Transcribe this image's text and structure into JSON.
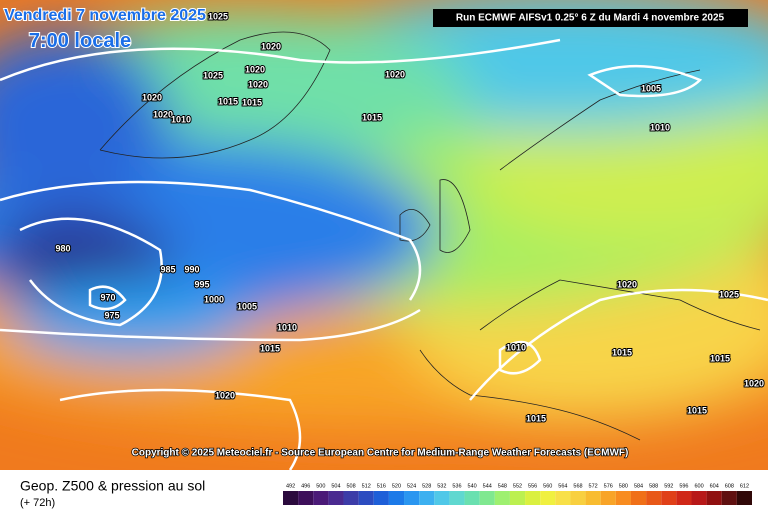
{
  "header": {
    "date": "Vendredi 7 novembre 2025",
    "time": "7:00 locale",
    "run": "Run ECMWF AIFSv1 0.25° 6 Z du Mardi 4 novembre 2025"
  },
  "isobar_labels": [
    "1025",
    "1020",
    "1025",
    "1020",
    "1020",
    "1020",
    "1015",
    "1015",
    "1020",
    "1010",
    "1020",
    "1015",
    "1005",
    "1010",
    "980",
    "985",
    "990",
    "995",
    "1000",
    "970",
    "975",
    "1005",
    "1010",
    "1015",
    "1020",
    "1020",
    "1025",
    "1010",
    "1015",
    "1015",
    "1020",
    "1015",
    "1015"
  ],
  "copyright": "Copyright © 2025 Meteociel.fr - Source European Centre for Medium-Range Weather Forecasts (ECMWF)",
  "legend": {
    "title": "Geop. Z500 & pression au sol",
    "lead_time": "(+ 72h)",
    "ticks": [
      492,
      496,
      500,
      504,
      508,
      512,
      516,
      520,
      524,
      528,
      532,
      536,
      540,
      544,
      548,
      552,
      556,
      560,
      564,
      568,
      572,
      576,
      580,
      584,
      588,
      592,
      596,
      600,
      604,
      608,
      612
    ],
    "colors": [
      "#2b0a3d",
      "#3d0f5a",
      "#4b1a78",
      "#4a2a90",
      "#3c3ca8",
      "#2c4cc0",
      "#1e5fd8",
      "#1c7ae8",
      "#2a96f0",
      "#3cb0f0",
      "#50c8e8",
      "#60d8d0",
      "#6ae0b0",
      "#80e890",
      "#9ef070",
      "#bcf050",
      "#daf040",
      "#f0f040",
      "#f8e048",
      "#f8d040",
      "#f8bc30",
      "#f8a428",
      "#f88c20",
      "#f07018",
      "#e85818",
      "#e04018",
      "#d02818",
      "#b81818",
      "#901010",
      "#601010",
      "#300808"
    ]
  }
}
